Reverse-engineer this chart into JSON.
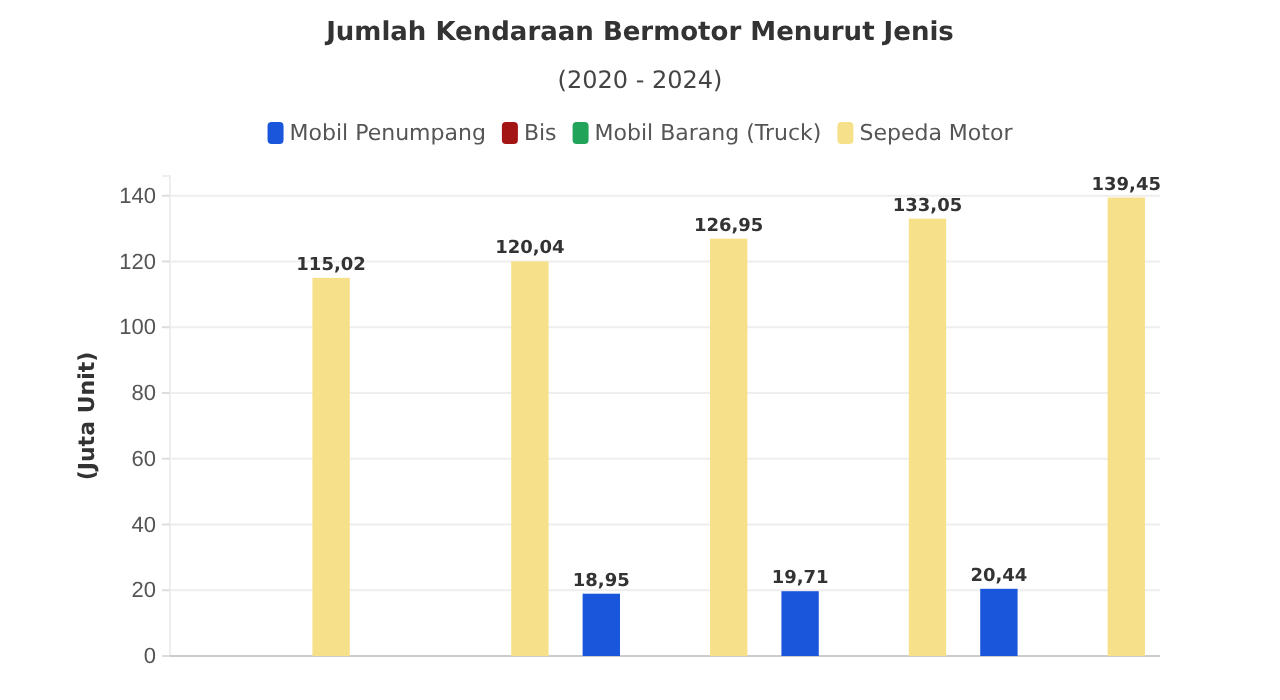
{
  "chart_data": {
    "type": "bar",
    "title": "Jumlah Kendaraan Bermotor Menurut Jenis",
    "subtitle": "(2020 - 2024)",
    "ylabel": "(Juta Unit)",
    "categories": [
      null,
      null,
      null,
      null,
      null
    ],
    "series": [
      {
        "name": "Mobil Penumpang",
        "color": "#1a56db",
        "values": [
          null,
          null,
          18.95,
          19.71,
          20.44
        ],
        "value_labels": [
          null,
          null,
          "18,95",
          "19,71",
          "20,44"
        ]
      },
      {
        "name": "Bis",
        "color": "#a31515",
        "values": [
          null,
          null,
          null,
          null,
          null
        ]
      },
      {
        "name": "Mobil Barang (Truck)",
        "color": "#22a35a",
        "values": [
          null,
          null,
          null,
          null,
          null
        ]
      },
      {
        "name": "Sepeda Motor",
        "color": "#f7e08a",
        "values": [
          115.02,
          120.04,
          126.95,
          133.05,
          139.45
        ],
        "value_labels": [
          "115,02",
          "120,04",
          "126,95",
          "133,05",
          "139,45"
        ]
      }
    ],
    "ylim": [
      0,
      146
    ],
    "yticks": [
      0,
      20,
      40,
      60,
      80,
      100,
      120,
      140
    ],
    "grid": "y",
    "legend": "top"
  }
}
